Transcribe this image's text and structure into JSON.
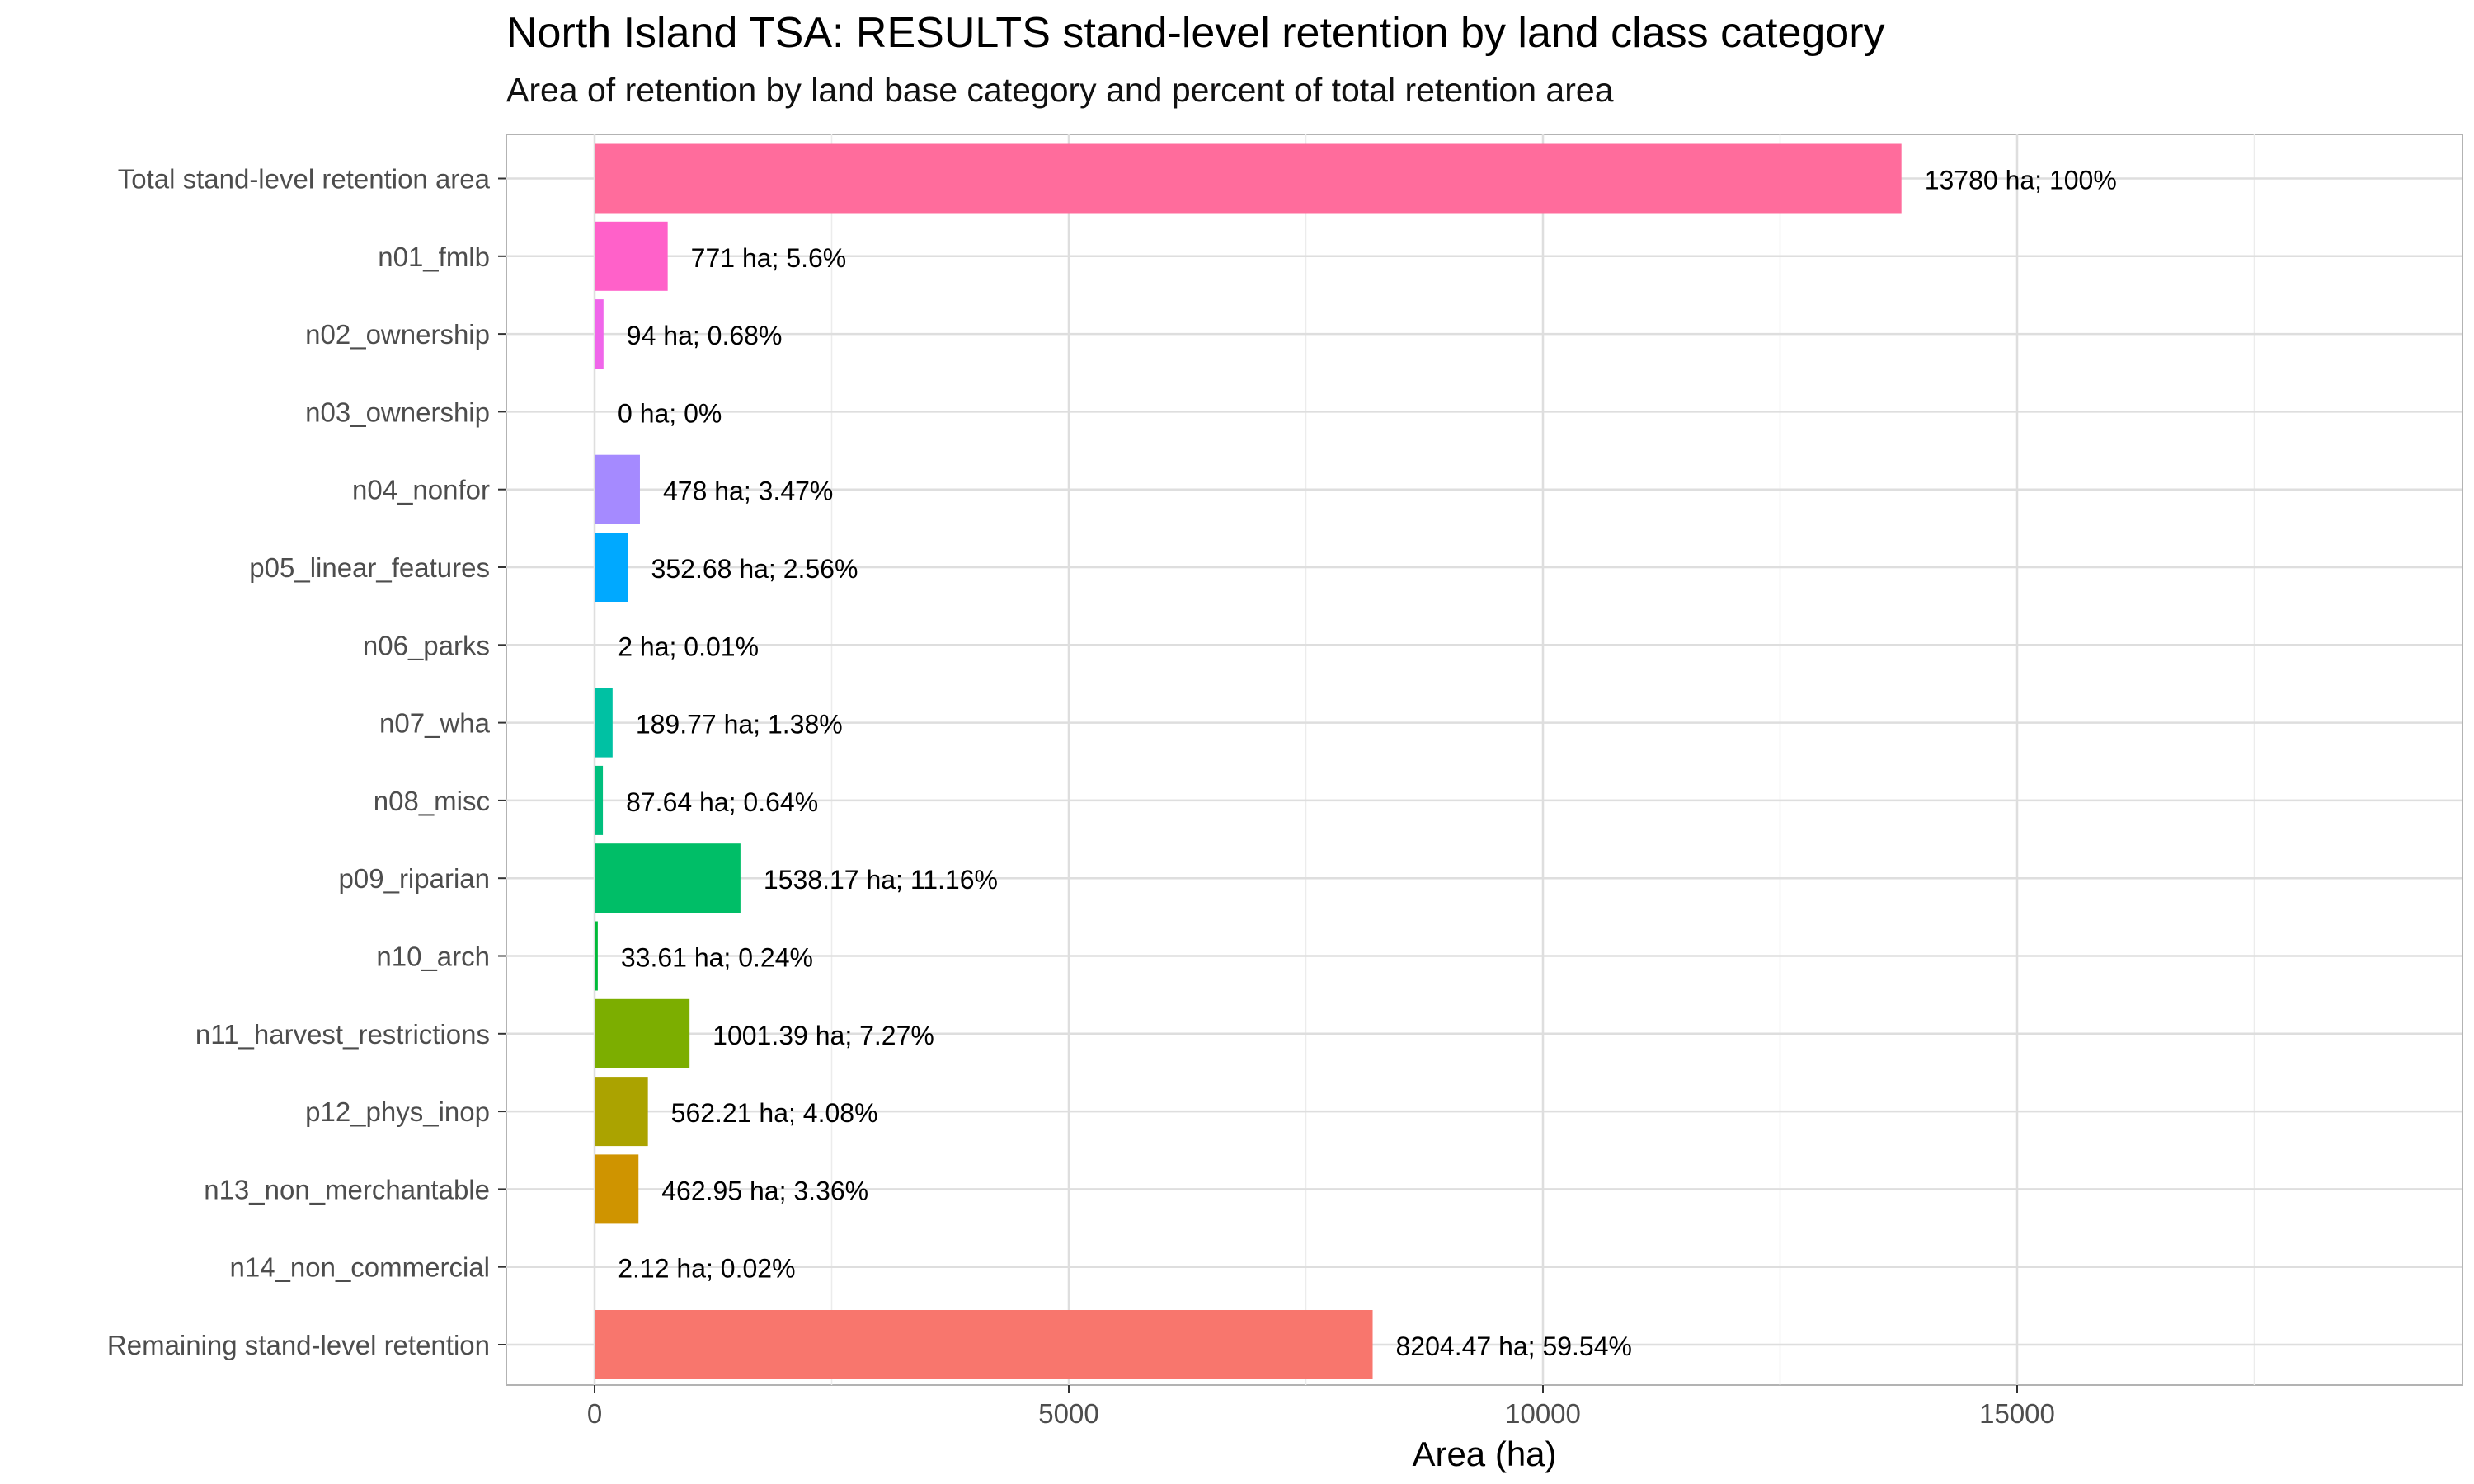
{
  "chart_data": {
    "type": "bar",
    "orientation": "horizontal",
    "title": "North Island TSA: RESULTS stand-level retention by land class category",
    "subtitle": "Area of retention by land base category and percent of total retention area",
    "xlabel": "Area (ha)",
    "ylabel": "",
    "xlim": [
      -900,
      19700
    ],
    "x_ticks": [
      0,
      5000,
      10000,
      15000
    ],
    "grid": true,
    "categories": [
      "Total stand-level retention area",
      "n01_fmlb",
      "n02_ownership",
      "n03_ownership",
      "n04_nonfor",
      "p05_linear_features",
      "n06_parks",
      "n07_wha",
      "n08_misc",
      "p09_riparian",
      "n10_arch",
      "n11_harvest_restrictions",
      "p12_phys_inop",
      "n13_non_merchantable",
      "n14_non_commercial",
      "Remaining stand-level retention"
    ],
    "values": [
      13780,
      771,
      94,
      0,
      478,
      352.68,
      2,
      189.77,
      87.64,
      1538.17,
      33.61,
      1001.39,
      562.21,
      462.95,
      2.12,
      8204.47
    ],
    "data_labels": [
      "13780 ha; 100%",
      "771 ha; 5.6%",
      "94 ha; 0.68%",
      "0 ha; 0%",
      "478 ha; 3.47%",
      "352.68 ha; 2.56%",
      "2 ha; 0.01%",
      "189.77 ha; 1.38%",
      "87.64 ha; 0.64%",
      "1538.17 ha; 11.16%",
      "33.61 ha; 0.24%",
      "1001.39 ha; 7.27%",
      "562.21 ha; 4.08%",
      "462.95 ha; 3.36%",
      "2.12 ha; 0.02%",
      "8204.47 ha; 59.54%"
    ],
    "colors": [
      "#FF6C9C",
      "#FF61C9",
      "#F066EA",
      "#D078FF",
      "#A58AFF",
      "#00A9FF",
      "#00B8E7",
      "#00C1A3",
      "#00BF7D",
      "#00BE67",
      "#00BA38",
      "#7CAE00",
      "#ABA300",
      "#CF9400",
      "#E38900",
      "#F8766D"
    ]
  }
}
